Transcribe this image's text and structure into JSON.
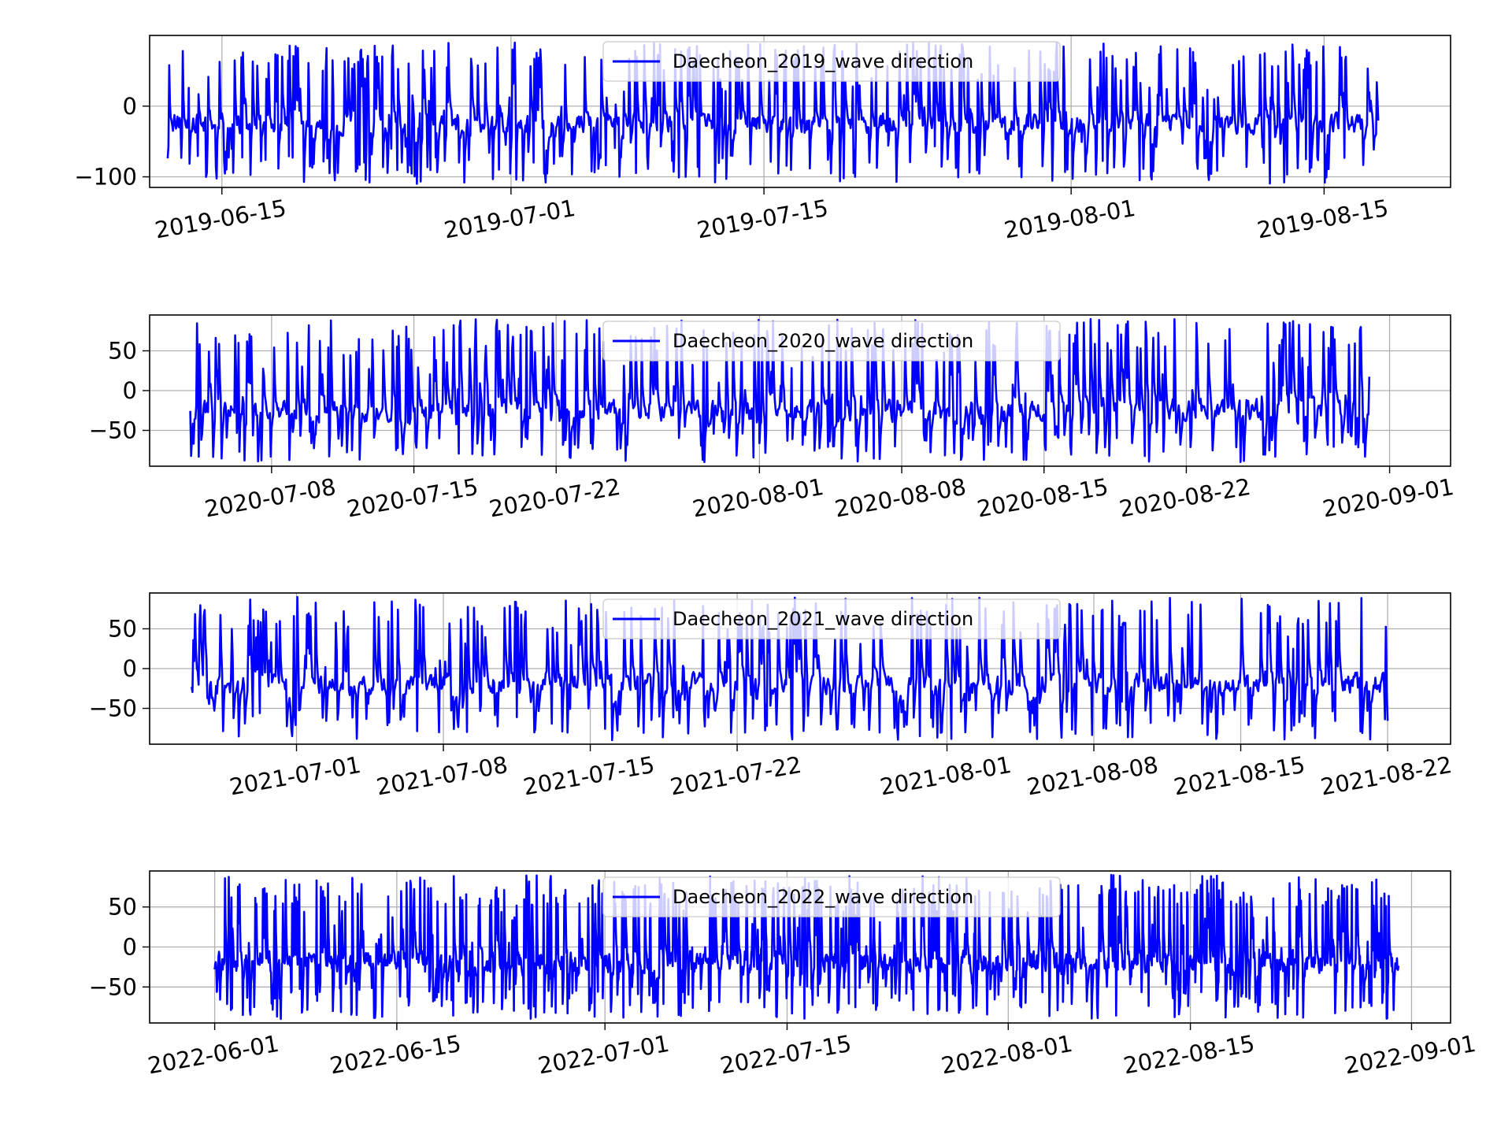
{
  "chart_data": [
    {
      "type": "line",
      "title": "",
      "xlabel": "",
      "ylabel": "",
      "x_start": "2019-06-12",
      "x_end": "2019-08-18",
      "xlim": [
        "2019-06-11",
        "2019-08-22"
      ],
      "ylim": [
        -115,
        100
      ],
      "yticks": [
        0,
        -100
      ],
      "xticks": [
        "2019-06-15",
        "2019-07-01",
        "2019-07-15",
        "2019-08-01",
        "2019-08-15"
      ],
      "grid": true,
      "legend_position": "upper center",
      "series": [
        {
          "name": "Daecheon_2019_wave direction",
          "color": "#0000ff",
          "y_range": [
            -110,
            90
          ],
          "typical_level": -25
        }
      ]
    },
    {
      "type": "line",
      "title": "",
      "xlabel": "",
      "ylabel": "",
      "x_start": "2020-07-04",
      "x_end": "2020-08-31",
      "xlim": [
        "2020-07-02",
        "2020-09-04"
      ],
      "ylim": [
        -95,
        95
      ],
      "yticks": [
        50,
        0,
        -50
      ],
      "xticks": [
        "2020-07-08",
        "2020-07-15",
        "2020-07-22",
        "2020-08-01",
        "2020-08-08",
        "2020-08-15",
        "2020-08-22",
        "2020-09-01"
      ],
      "grid": true,
      "legend_position": "upper center",
      "series": [
        {
          "name": "Daecheon_2020_wave direction",
          "color": "#0000ff",
          "y_range": [
            -90,
            90
          ],
          "typical_level": -25
        }
      ]
    },
    {
      "type": "line",
      "title": "",
      "xlabel": "",
      "ylabel": "",
      "x_start": "2021-06-26",
      "x_end": "2021-08-22",
      "xlim": [
        "2021-06-24",
        "2021-08-25"
      ],
      "ylim": [
        -95,
        95
      ],
      "yticks": [
        50,
        0,
        -50
      ],
      "xticks": [
        "2021-07-01",
        "2021-07-08",
        "2021-07-15",
        "2021-07-22",
        "2021-08-01",
        "2021-08-08",
        "2021-08-15",
        "2021-08-22"
      ],
      "grid": true,
      "legend_position": "upper center",
      "series": [
        {
          "name": "Daecheon_2021_wave direction",
          "color": "#0000ff",
          "y_range": [
            -90,
            90
          ],
          "typical_level": -20
        }
      ]
    },
    {
      "type": "line",
      "title": "",
      "xlabel": "",
      "ylabel": "",
      "x_start": "2022-06-01",
      "x_end": "2022-08-31",
      "xlim": [
        "2022-05-27",
        "2022-09-04"
      ],
      "ylim": [
        -95,
        95
      ],
      "yticks": [
        50,
        0,
        -50
      ],
      "xticks": [
        "2022-06-01",
        "2022-06-15",
        "2022-07-01",
        "2022-07-15",
        "2022-08-01",
        "2022-08-15",
        "2022-09-01"
      ],
      "grid": true,
      "legend_position": "upper center",
      "series": [
        {
          "name": "Daecheon_2022_wave direction",
          "color": "#0000ff",
          "y_range": [
            -90,
            90
          ],
          "typical_level": -20
        }
      ]
    }
  ]
}
